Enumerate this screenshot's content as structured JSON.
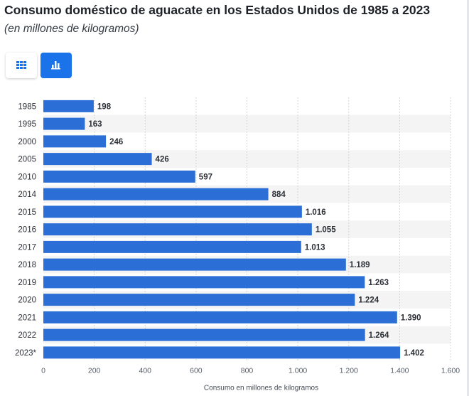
{
  "title": "Consumo doméstico de aguacate en los Estados Unidos de 1985 a 2023",
  "subtitle": "(en millones de kilogramos)",
  "toolbar": {
    "table_icon": "grid-icon",
    "chart_icon": "bar-chart-icon"
  },
  "colors": {
    "bar": "#2b6fd6",
    "accent_button": "#1a73e8",
    "band": "#f4f4f4",
    "grid": "#c9c9c9"
  },
  "chart_data": {
    "type": "bar",
    "orientation": "horizontal",
    "categories": [
      "1985",
      "1995",
      "2000",
      "2005",
      "2010",
      "2014",
      "2015",
      "2016",
      "2017",
      "2018",
      "2019",
      "2020",
      "2021",
      "2022",
      "2023*"
    ],
    "values": [
      198,
      163,
      246,
      426,
      597,
      884,
      1016,
      1055,
      1013,
      1189,
      1263,
      1224,
      1390,
      1264,
      1402
    ],
    "value_labels": [
      "198",
      "163",
      "246",
      "426",
      "597",
      "884",
      "1.016",
      "1.055",
      "1.013",
      "1.189",
      "1.263",
      "1.224",
      "1.390",
      "1.264",
      "1.402"
    ],
    "xlabel": "Consumo en millones de kilogramos",
    "xlim": [
      0,
      1600
    ],
    "xticks": [
      0,
      200,
      400,
      600,
      800,
      1000,
      1200,
      1400,
      1600
    ],
    "xtick_labels": [
      "0",
      "200",
      "400",
      "600",
      "800",
      "1.000",
      "1.200",
      "1.400",
      "1.600"
    ],
    "grid": "vertical dotted",
    "alternating_row_bands": true
  }
}
